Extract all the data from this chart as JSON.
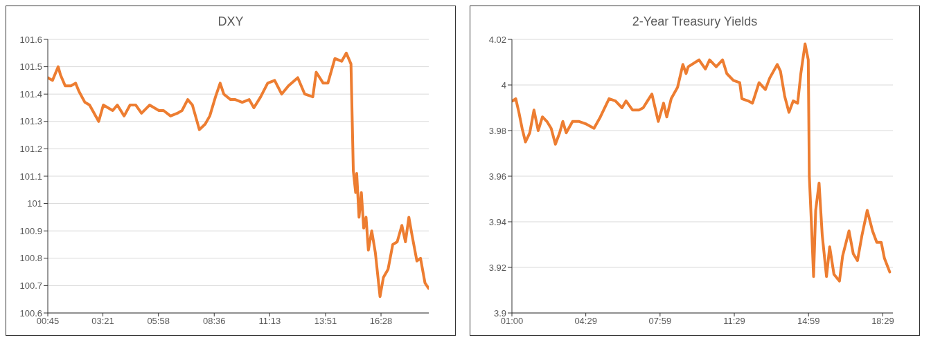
{
  "chart_data": [
    {
      "type": "line",
      "title": "DXY",
      "color": "#ed7d31",
      "grid": "y",
      "ylim": [
        100.6,
        101.6
      ],
      "yticks": [
        100.6,
        100.7,
        100.8,
        100.9,
        101,
        101.1,
        101.2,
        101.3,
        101.4,
        101.5,
        101.6
      ],
      "xlim": [
        0.75,
        18.72
      ],
      "xticks": [
        {
          "value": 0.75,
          "label": "00:45"
        },
        {
          "value": 3.35,
          "label": "03:21"
        },
        {
          "value": 5.9667,
          "label": "05:58"
        },
        {
          "value": 8.6,
          "label": "08:36"
        },
        {
          "value": 11.2167,
          "label": "11:13"
        },
        {
          "value": 13.85,
          "label": "13:51"
        },
        {
          "value": 16.4667,
          "label": "16:28"
        }
      ],
      "x": [
        0.75,
        0.97,
        1.24,
        1.35,
        1.57,
        1.84,
        2.06,
        2.22,
        2.5,
        2.72,
        3.15,
        3.37,
        3.59,
        3.81,
        4.03,
        4.35,
        4.63,
        4.9,
        5.17,
        5.55,
        5.99,
        6.21,
        6.54,
        6.86,
        7.08,
        7.35,
        7.57,
        7.9,
        8.17,
        8.39,
        8.66,
        8.88,
        9.05,
        9.37,
        9.59,
        9.92,
        10.25,
        10.47,
        10.79,
        11.12,
        11.45,
        11.78,
        12.1,
        12.54,
        12.87,
        13.25,
        13.41,
        13.74,
        13.96,
        14.29,
        14.61,
        14.83,
        15.05,
        15.11,
        15.16,
        15.27,
        15.32,
        15.43,
        15.54,
        15.65,
        15.76,
        15.87,
        16.03,
        16.2,
        16.42,
        16.58,
        16.8,
        17.02,
        17.23,
        17.45,
        17.62,
        17.78,
        17.94,
        18.16,
        18.33,
        18.54,
        18.71
      ],
      "values": [
        101.46,
        101.45,
        101.5,
        101.47,
        101.43,
        101.43,
        101.44,
        101.41,
        101.37,
        101.36,
        101.3,
        101.36,
        101.35,
        101.34,
        101.36,
        101.32,
        101.36,
        101.36,
        101.33,
        101.36,
        101.34,
        101.34,
        101.32,
        101.33,
        101.34,
        101.38,
        101.36,
        101.27,
        101.29,
        101.32,
        101.39,
        101.44,
        101.4,
        101.38,
        101.38,
        101.37,
        101.38,
        101.35,
        101.39,
        101.44,
        101.45,
        101.4,
        101.43,
        101.46,
        101.4,
        101.39,
        101.48,
        101.44,
        101.44,
        101.53,
        101.52,
        101.55,
        101.51,
        101.3,
        101.12,
        101.04,
        101.11,
        100.95,
        101.04,
        100.91,
        100.95,
        100.83,
        100.9,
        100.82,
        100.66,
        100.73,
        100.76,
        100.85,
        100.86,
        100.92,
        100.86,
        100.95,
        100.88,
        100.79,
        100.8,
        100.71,
        100.69
      ]
    },
    {
      "type": "line",
      "title": "2-Year Treasury Yields",
      "color": "#ed7d31",
      "grid": "y",
      "ylim": [
        3.9,
        4.02
      ],
      "yticks": [
        3.9,
        3.92,
        3.94,
        3.96,
        3.98,
        4,
        4.02
      ],
      "xlim": [
        1,
        18.96
      ],
      "xticks": [
        {
          "value": 1,
          "label": "01:00"
        },
        {
          "value": 4.4833,
          "label": "04:29"
        },
        {
          "value": 7.9833,
          "label": "07:59"
        },
        {
          "value": 11.4833,
          "label": "11:29"
        },
        {
          "value": 14.9833,
          "label": "14:59"
        },
        {
          "value": 18.4833,
          "label": "18:29"
        }
      ],
      "x": [
        1.03,
        1.18,
        1.33,
        1.48,
        1.64,
        1.84,
        2.04,
        2.24,
        2.44,
        2.65,
        2.85,
        3.05,
        3.25,
        3.4,
        3.56,
        3.86,
        4.17,
        4.47,
        4.87,
        5.17,
        5.58,
        5.88,
        6.19,
        6.38,
        6.69,
        6.99,
        7.19,
        7.39,
        7.6,
        7.9,
        8.15,
        8.3,
        8.51,
        8.81,
        9.06,
        9.21,
        9.31,
        9.82,
        10.12,
        10.32,
        10.63,
        10.93,
        11.13,
        11.44,
        11.74,
        11.84,
        12.14,
        12.34,
        12.65,
        12.95,
        13.15,
        13.51,
        13.66,
        13.86,
        14.06,
        14.26,
        14.47,
        14.62,
        14.82,
        14.97,
        15.02,
        15.12,
        15.22,
        15.32,
        15.48,
        15.63,
        15.83,
        15.98,
        16.18,
        16.44,
        16.59,
        16.89,
        17.09,
        17.29,
        17.5,
        17.75,
        18,
        18.2,
        18.41,
        18.56,
        18.81
      ],
      "values": [
        3.993,
        3.994,
        3.988,
        3.981,
        3.975,
        3.979,
        3.989,
        3.98,
        3.986,
        3.984,
        3.981,
        3.974,
        3.979,
        3.984,
        3.979,
        3.984,
        3.984,
        3.983,
        3.981,
        3.986,
        3.994,
        3.993,
        3.99,
        3.993,
        3.989,
        3.989,
        3.99,
        3.993,
        3.996,
        3.984,
        3.992,
        3.986,
        3.994,
        3.999,
        4.009,
        4.005,
        4.008,
        4.011,
        4.007,
        4.011,
        4.008,
        4.011,
        4.005,
        4.002,
        4.001,
        3.994,
        3.993,
        3.992,
        4.001,
        3.998,
        4.003,
        4.009,
        4.006,
        3.995,
        3.988,
        3.993,
        3.992,
        4.005,
        4.018,
        4.011,
        3.96,
        3.939,
        3.916,
        3.945,
        3.957,
        3.934,
        3.916,
        3.929,
        3.917,
        3.914,
        3.925,
        3.936,
        3.926,
        3.923,
        3.934,
        3.945,
        3.936,
        3.931,
        3.931,
        3.924,
        3.918
      ]
    }
  ]
}
